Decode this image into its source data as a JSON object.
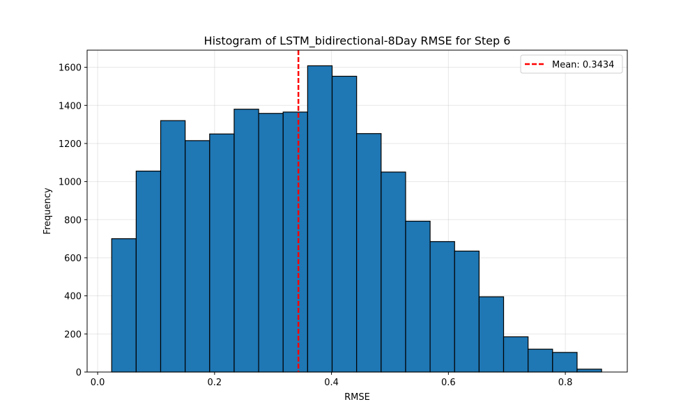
{
  "chart_data": {
    "type": "bar",
    "title": "Histogram of LSTM_bidirectional-8Day RMSE for Step 6",
    "xlabel": "RMSE",
    "ylabel": "Frequency",
    "bin_start": 0.024,
    "bin_width": 0.0419,
    "values": [
      700,
      1055,
      1320,
      1215,
      1250,
      1380,
      1358,
      1365,
      1608,
      1553,
      1252,
      1050,
      792,
      685,
      635,
      395,
      185,
      120,
      103,
      15
    ],
    "xlim": [
      -0.018,
      0.906
    ],
    "ylim": [
      0,
      1690
    ],
    "xticks": [
      0.0,
      0.2,
      0.4,
      0.6,
      0.8
    ],
    "xtick_labels": [
      "0.0",
      "0.2",
      "0.4",
      "0.6",
      "0.8"
    ],
    "yticks": [
      0,
      200,
      400,
      600,
      800,
      1000,
      1200,
      1400,
      1600
    ],
    "ytick_labels": [
      "0",
      "200",
      "400",
      "600",
      "800",
      "1000",
      "1200",
      "1400",
      "1600"
    ],
    "mean_line": {
      "value": 0.3434,
      "label": "Mean: 0.3434",
      "color": "#ff0000",
      "style": "dashed"
    },
    "legend": {
      "position": "top-right"
    },
    "bar_color": "#1f77b4",
    "bar_edge_color": "#000000",
    "grid": true
  }
}
